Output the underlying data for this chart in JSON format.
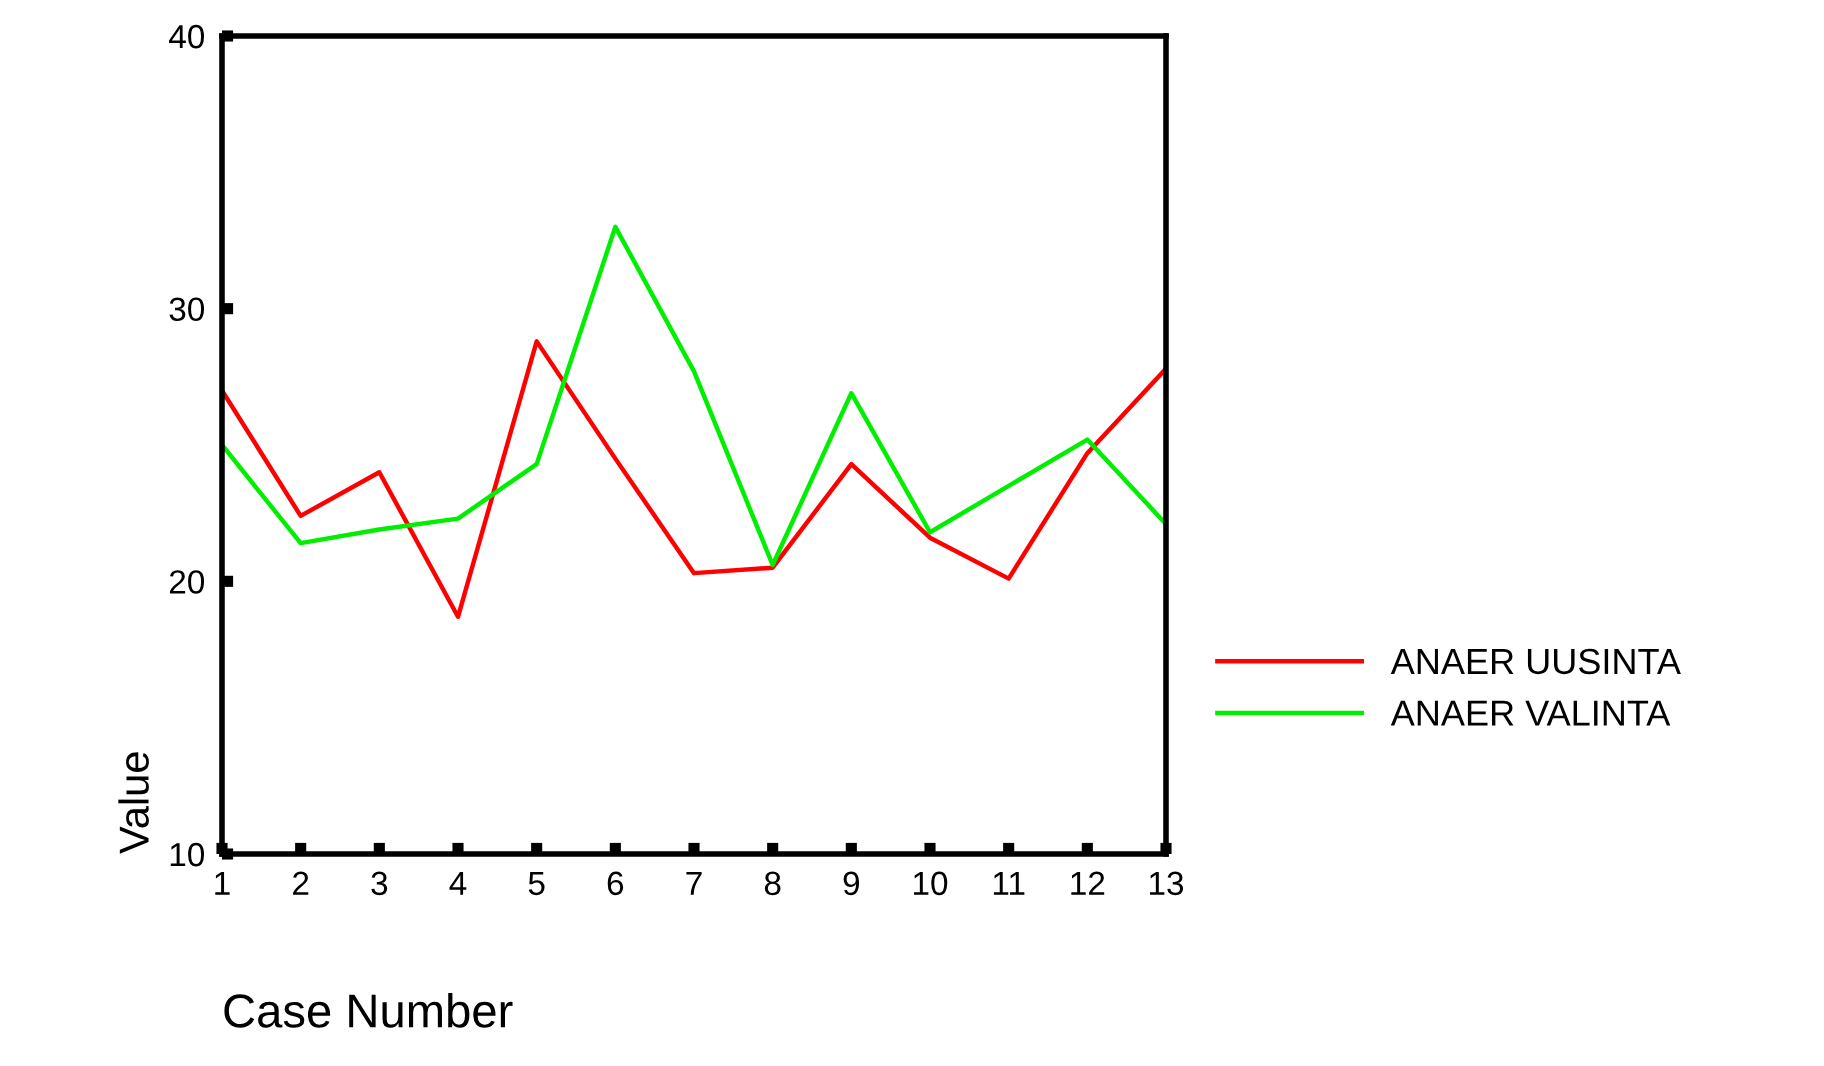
{
  "chart_data": {
    "type": "line",
    "xlabel": "Case Number",
    "ylabel": "Value",
    "x": [
      1,
      2,
      3,
      4,
      5,
      6,
      7,
      8,
      9,
      10,
      11,
      12,
      13
    ],
    "series": [
      {
        "name": "ANAER UUSINTA",
        "color": "#ff0000",
        "values": [
          27.0,
          22.4,
          24.0,
          18.7,
          28.8,
          24.5,
          20.3,
          20.5,
          24.3,
          21.6,
          20.1,
          24.7,
          27.8
        ]
      },
      {
        "name": "ANAER VALINTA",
        "color": "#00ee00",
        "values": [
          25.0,
          21.4,
          21.9,
          22.3,
          24.3,
          33.0,
          27.7,
          20.6,
          26.9,
          21.8,
          23.5,
          25.2,
          22.1
        ]
      }
    ],
    "xlim": [
      1,
      13
    ],
    "xticks": [
      1,
      2,
      3,
      4,
      5,
      6,
      7,
      8,
      9,
      10,
      11,
      12,
      13
    ],
    "ylim": [
      10,
      40
    ],
    "yticks": [
      10,
      20,
      30,
      40
    ],
    "grid": false,
    "legend": "right",
    "marker": "none",
    "line_style": "solid"
  }
}
